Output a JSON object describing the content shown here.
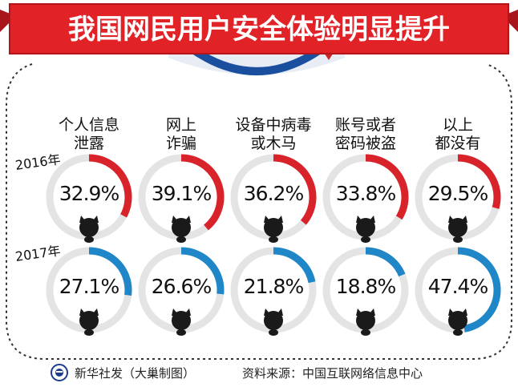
{
  "title": "我国网民用户安全体验明显提升",
  "footer": {
    "source_left": "新华社发（大巢制图）",
    "source_right": "资料来源：中国互联网络信息中心"
  },
  "colors": {
    "banner_red": "#e12227",
    "ring_red": "#d9232a",
    "ring_blue": "#1f86c7",
    "ring_track": "#e4e4e4",
    "dashed_border": "#333333",
    "shield_blue": "#1a4fa0"
  },
  "chart_data": {
    "type": "donut-grid",
    "categories": [
      [
        "个人信息",
        "泄露"
      ],
      [
        "网上",
        "诈骗"
      ],
      [
        "设备中病毒",
        "或木马"
      ],
      [
        "账号或者",
        "密码被盗"
      ],
      [
        "以上",
        "都没有"
      ]
    ],
    "series": [
      {
        "name": "2016年",
        "values": [
          32.9,
          39.1,
          36.2,
          33.8,
          29.5
        ],
        "labels": [
          "32.9%",
          "39.1%",
          "36.2%",
          "33.8%",
          "29.5%"
        ]
      },
      {
        "name": "2017年",
        "values": [
          27.1,
          26.6,
          21.8,
          18.8,
          47.4
        ],
        "labels": [
          "27.1%",
          "26.6%",
          "21.8%",
          "18.8%",
          "47.4%"
        ]
      }
    ],
    "unit": "%",
    "range": [
      0,
      100
    ]
  }
}
